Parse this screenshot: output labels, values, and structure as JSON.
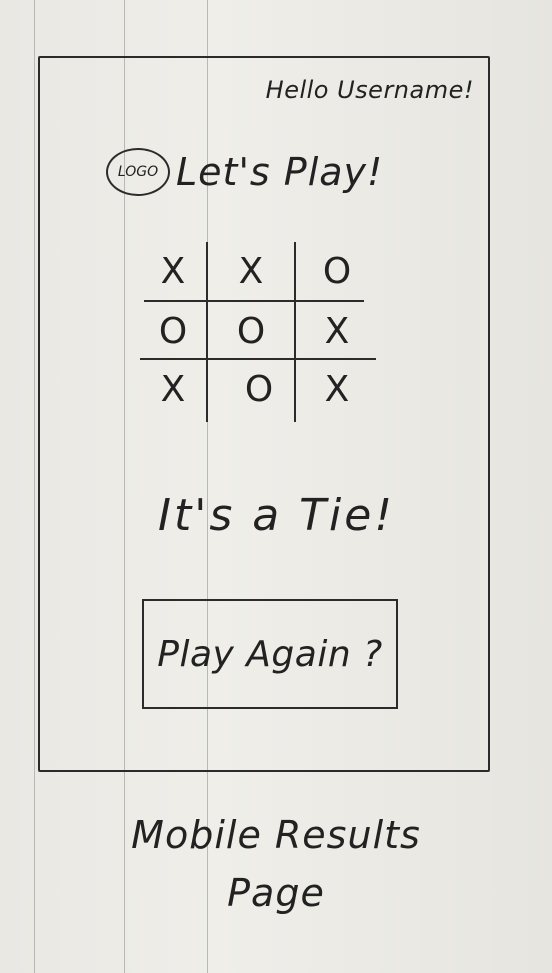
{
  "header": {
    "greeting": "Hello Username!",
    "logo_text": "LOGO",
    "title": "Let's Play!"
  },
  "board": {
    "cells": [
      [
        "X",
        "X",
        "O"
      ],
      [
        "O",
        "O",
        "X"
      ],
      [
        "X",
        "O",
        "X"
      ]
    ]
  },
  "result": {
    "text": "It's a Tie!"
  },
  "actions": {
    "play_again_label": "Play Again ?"
  },
  "caption": {
    "line1": "Mobile Results",
    "line2": "Page"
  }
}
